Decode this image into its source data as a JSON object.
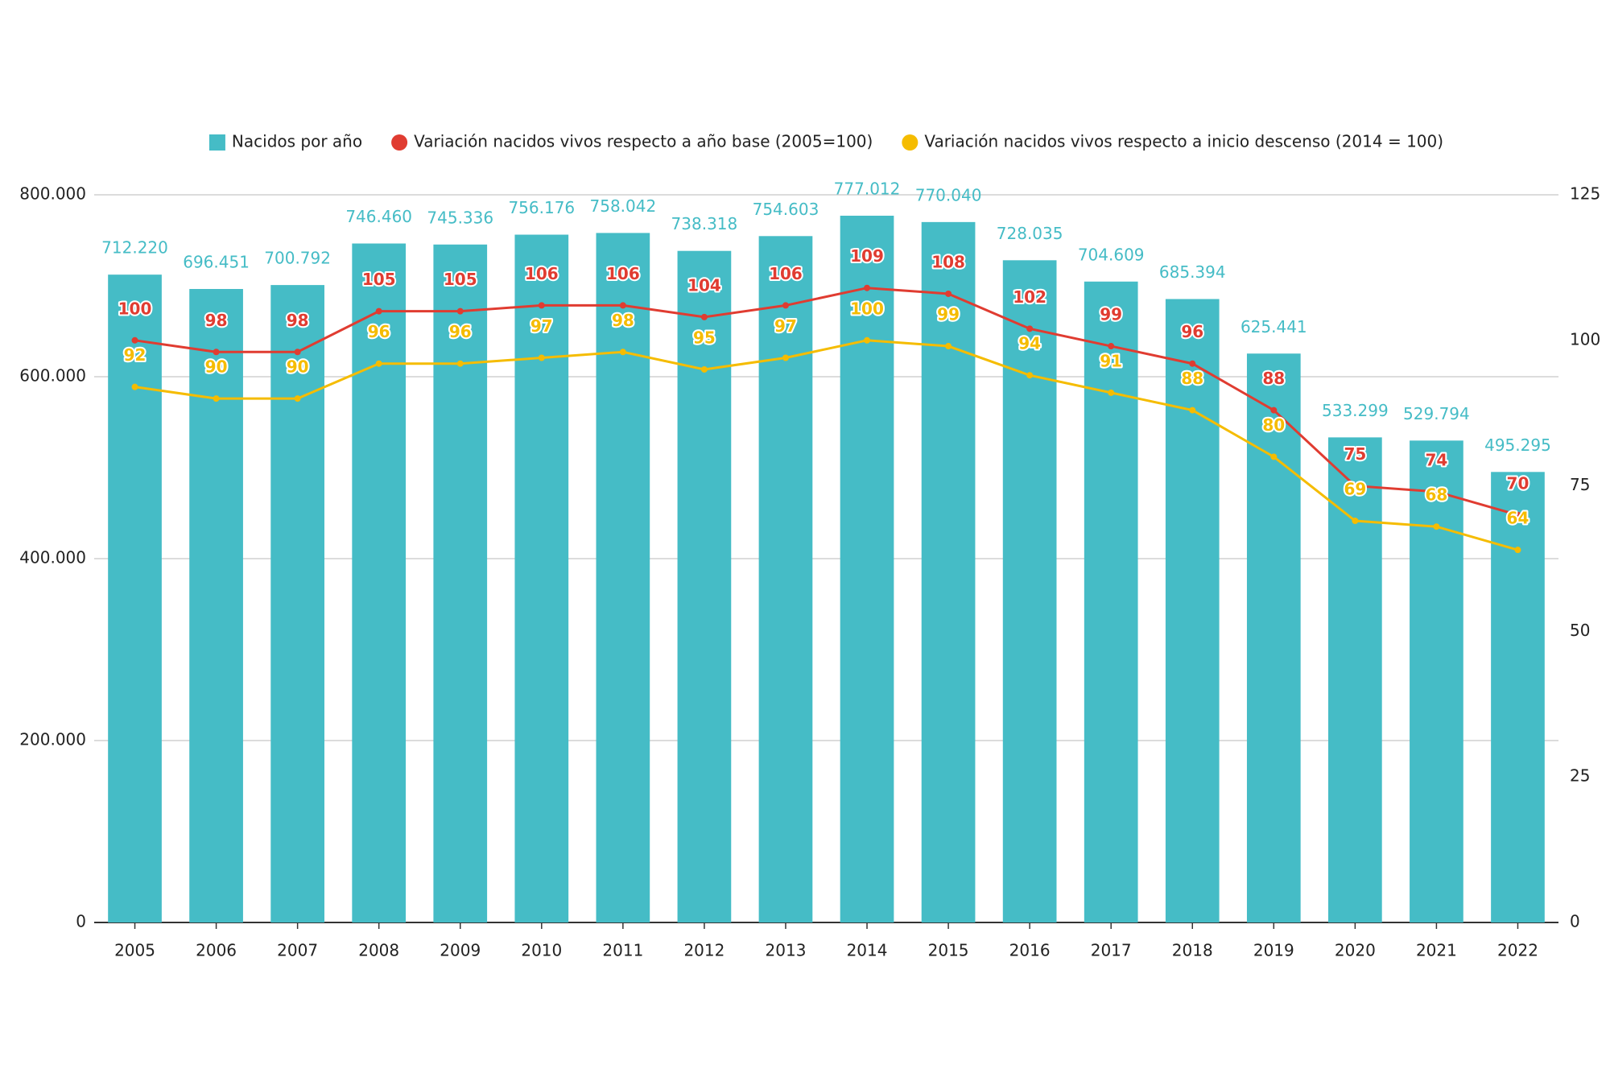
{
  "chart_data": {
    "type": "bar",
    "categories": [
      "2005",
      "2006",
      "2007",
      "2008",
      "2009",
      "2010",
      "2011",
      "2012",
      "2013",
      "2014",
      "2015",
      "2016",
      "2017",
      "2018",
      "2019",
      "2020",
      "2021",
      "2022"
    ],
    "series": [
      {
        "name": "Nacidos por año",
        "type": "bar",
        "color": "#45bcc6",
        "values": [
          712220,
          696451,
          700792,
          746460,
          745336,
          756176,
          758042,
          738318,
          754603,
          777012,
          770040,
          728035,
          704609,
          685394,
          625441,
          533299,
          529794,
          495295
        ],
        "value_labels": [
          "712.220",
          "696.451",
          "700.792",
          "746.460",
          "745.336",
          "756.176",
          "758.042",
          "738.318",
          "754.603",
          "777.012",
          "770.040",
          "728.035",
          "704.609",
          "685.394",
          "625.441",
          "533.299",
          "529.794",
          "495.295"
        ]
      },
      {
        "name": "Variación nacidos vivos respecto a año base (2005=100)",
        "type": "line",
        "axis": "y2",
        "color": "#e03c31",
        "values": [
          100,
          98,
          98,
          105,
          105,
          106,
          106,
          104,
          106,
          109,
          108,
          102,
          99,
          96,
          88,
          75,
          74,
          70
        ]
      },
      {
        "name": "Variación nacidos vivos respecto a inicio descenso (2014 = 100)",
        "type": "line",
        "axis": "y2",
        "color": "#f5bc00",
        "values": [
          92,
          90,
          90,
          96,
          96,
          97,
          98,
          95,
          97,
          100,
          99,
          94,
          91,
          88,
          80,
          69,
          68,
          64
        ]
      }
    ],
    "ylim": [
      0,
      800000
    ],
    "yticks": [
      0,
      {
        "value": 200000,
        "label": "200.000"
      },
      {
        "value": 400000,
        "label": "400.000"
      },
      {
        "value": 600000,
        "label": "600.000"
      },
      {
        "value": 800000,
        "label": "800.000"
      }
    ],
    "y2lim": [
      0,
      125
    ],
    "y2ticks": [
      0,
      25,
      50,
      75,
      100,
      125
    ],
    "grid": true,
    "legend": "top"
  }
}
